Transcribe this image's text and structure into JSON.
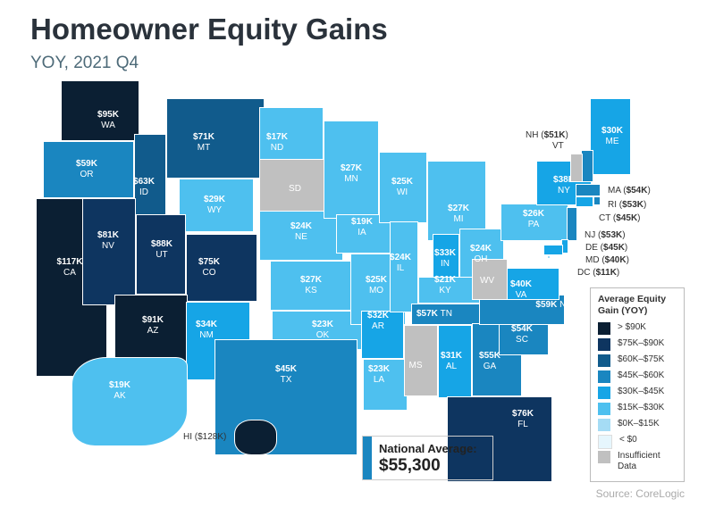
{
  "title": "Homeowner Equity Gains",
  "subtitle": "YOY, 2021 Q4",
  "legend": {
    "title": "Average Equity Gain (YOY)",
    "items": [
      {
        "label": "> $90K",
        "color": "#0b1f33"
      },
      {
        "label": "$75K–$90K",
        "color": "#0e3560"
      },
      {
        "label": "$60K–$75K",
        "color": "#115b8c"
      },
      {
        "label": "$45K–$60K",
        "color": "#1a86c0"
      },
      {
        "label": "$30K–$45K",
        "color": "#16a5e6"
      },
      {
        "label": "$15K–$30K",
        "color": "#4ec0ef"
      },
      {
        "label": "$0K–$15K",
        "color": "#a5dcf5"
      },
      {
        "label": "< $0",
        "color": "#e6f6fd"
      },
      {
        "label": "Insufficient Data",
        "color": "#c0c0c0"
      }
    ]
  },
  "national": {
    "label": "National Average:",
    "value": "$55,300"
  },
  "source": "Source: CoreLogic",
  "states": [
    {
      "abbr": "WA",
      "value": "$95K",
      "bin": 0
    },
    {
      "abbr": "OR",
      "value": "$59K",
      "bin": 3
    },
    {
      "abbr": "CA",
      "value": "$117K",
      "bin": 0
    },
    {
      "abbr": "ID",
      "value": "$63K",
      "bin": 2
    },
    {
      "abbr": "NV",
      "value": "$81K",
      "bin": 1
    },
    {
      "abbr": "MT",
      "value": "$71K",
      "bin": 2
    },
    {
      "abbr": "WY",
      "value": "$29K",
      "bin": 5
    },
    {
      "abbr": "UT",
      "value": "$88K",
      "bin": 1
    },
    {
      "abbr": "CO",
      "value": "$75K",
      "bin": 1
    },
    {
      "abbr": "AZ",
      "value": "$91K",
      "bin": 0
    },
    {
      "abbr": "NM",
      "value": "$34K",
      "bin": 4
    },
    {
      "abbr": "ND",
      "value": "$17K",
      "bin": 5
    },
    {
      "abbr": "SD",
      "value": "",
      "bin": 8
    },
    {
      "abbr": "NE",
      "value": "$24K",
      "bin": 5
    },
    {
      "abbr": "KS",
      "value": "$27K",
      "bin": 5
    },
    {
      "abbr": "OK",
      "value": "$23K",
      "bin": 5
    },
    {
      "abbr": "TX",
      "value": "$45K",
      "bin": 3
    },
    {
      "abbr": "MN",
      "value": "$27K",
      "bin": 5
    },
    {
      "abbr": "IA",
      "value": "$19K",
      "bin": 5
    },
    {
      "abbr": "MO",
      "value": "$25K",
      "bin": 5
    },
    {
      "abbr": "AR",
      "value": "$32K",
      "bin": 4
    },
    {
      "abbr": "LA",
      "value": "$23K",
      "bin": 5
    },
    {
      "abbr": "WI",
      "value": "$25K",
      "bin": 5
    },
    {
      "abbr": "IL",
      "value": "$24K",
      "bin": 5
    },
    {
      "abbr": "MI",
      "value": "$27K",
      "bin": 5
    },
    {
      "abbr": "IN",
      "value": "$33K",
      "bin": 4
    },
    {
      "abbr": "OH",
      "value": "$24K",
      "bin": 5
    },
    {
      "abbr": "KY",
      "value": "$21K",
      "bin": 5
    },
    {
      "abbr": "TN",
      "value": "$57K",
      "bin": 3
    },
    {
      "abbr": "MS",
      "value": "",
      "bin": 8
    },
    {
      "abbr": "AL",
      "value": "$31K",
      "bin": 4
    },
    {
      "abbr": "GA",
      "value": "$55K",
      "bin": 3
    },
    {
      "abbr": "FL",
      "value": "$76K",
      "bin": 1
    },
    {
      "abbr": "SC",
      "value": "$54K",
      "bin": 3
    },
    {
      "abbr": "NC",
      "value": "$59K",
      "bin": 3
    },
    {
      "abbr": "VA",
      "value": "$40K",
      "bin": 4
    },
    {
      "abbr": "WV",
      "value": "",
      "bin": 8
    },
    {
      "abbr": "PA",
      "value": "$26K",
      "bin": 5
    },
    {
      "abbr": "NY",
      "value": "$38K",
      "bin": 4
    },
    {
      "abbr": "ME",
      "value": "$30K",
      "bin": 4
    },
    {
      "abbr": "AK",
      "value": "$19K",
      "bin": 5
    },
    {
      "abbr": "HI",
      "value": "$128K",
      "bin": 0
    }
  ],
  "callouts": [
    {
      "abbr": "NH",
      "value": "$51K",
      "bin": 3
    },
    {
      "abbr": "VT",
      "value": "",
      "bin": 8
    },
    {
      "abbr": "MA",
      "value": "$54K",
      "bin": 3
    },
    {
      "abbr": "RI",
      "value": "$53K",
      "bin": 3
    },
    {
      "abbr": "CT",
      "value": "$45K",
      "bin": 4
    },
    {
      "abbr": "NJ",
      "value": "$53K",
      "bin": 3
    },
    {
      "abbr": "DE",
      "value": "$45K",
      "bin": 4
    },
    {
      "abbr": "MD",
      "value": "$40K",
      "bin": 4
    },
    {
      "abbr": "DC",
      "value": "$11K",
      "bin": 6
    }
  ]
}
